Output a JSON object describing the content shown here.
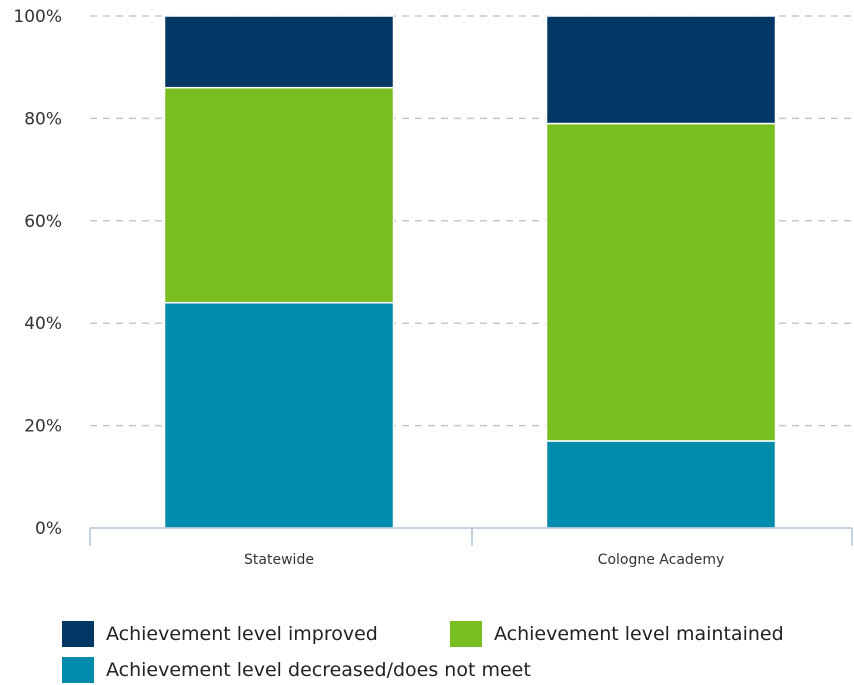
{
  "chart_data": {
    "type": "bar",
    "stacked": true,
    "categories": [
      "Statewide",
      "Cologne Academy"
    ],
    "series": [
      {
        "name": "Achievement level decreased/does not meet",
        "color": "#008caa",
        "values": [
          44,
          17
        ]
      },
      {
        "name": "Achievement level maintained",
        "color": "#78be20",
        "values": [
          42,
          62
        ]
      },
      {
        "name": "Achievement level improved",
        "color": "#003764",
        "values": [
          14,
          21
        ]
      }
    ],
    "yticks": [
      "0%",
      "20%",
      "40%",
      "60%",
      "80%",
      "100%"
    ],
    "ylim": [
      0,
      100
    ],
    "grid": true,
    "legend_position": "bottom"
  },
  "legend": {
    "improved": {
      "label": "Achievement level improved",
      "color": "#003764"
    },
    "maintained": {
      "label": "Achievement level maintained",
      "color": "#78be20"
    },
    "decreased": {
      "label": "Achievement level decreased/does not meet",
      "color": "#008caa"
    }
  }
}
